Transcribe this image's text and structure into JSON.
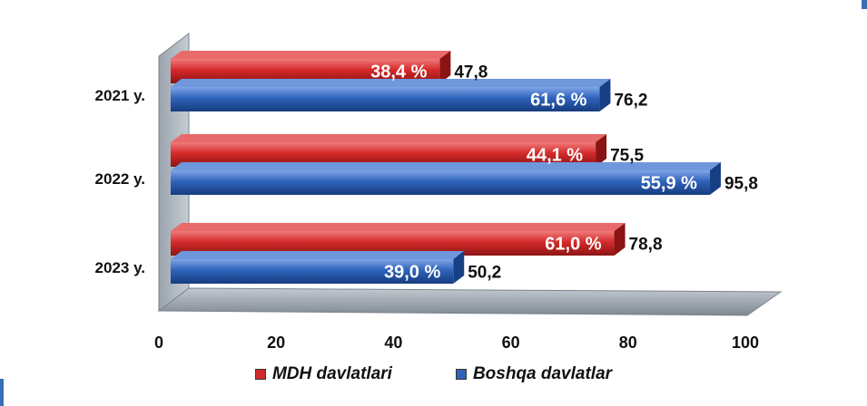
{
  "chart_data": {
    "type": "bar",
    "orientation": "horizontal",
    "categories": [
      "2021 y.",
      "2022 y.",
      "2023 y."
    ],
    "series": [
      {
        "name": "MDH davlatlari",
        "color": "#d02a2a",
        "values": [
          47.8,
          75.5,
          78.8
        ],
        "value_labels": [
          "47,8",
          "75,5",
          "78,8"
        ],
        "share_labels": [
          "38,4 %",
          "44,1 %",
          "61,0 %"
        ]
      },
      {
        "name": "Boshqa davlatlar",
        "color": "#2e63b8",
        "values": [
          76.2,
          95.8,
          50.2
        ],
        "value_labels": [
          "76,2",
          "95,8",
          "50,2"
        ],
        "share_labels": [
          "61,6 %",
          "55,9 %",
          "39,0 %"
        ]
      }
    ],
    "x_ticks": [
      "0",
      "20",
      "40",
      "60",
      "80",
      "100"
    ],
    "xlim": [
      0,
      100
    ],
    "grid": false,
    "legend_position": "bottom",
    "style": "3d"
  }
}
